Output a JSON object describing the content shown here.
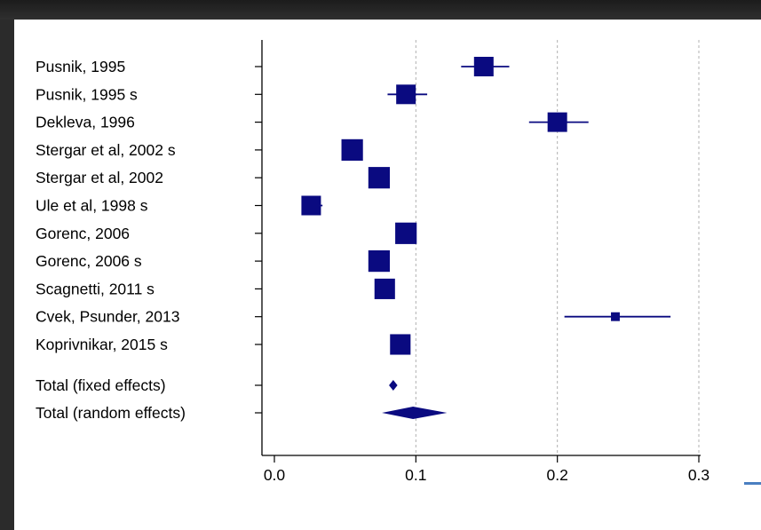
{
  "chart_data": {
    "type": "forest",
    "xlim": [
      0.0,
      0.3
    ],
    "xticks": [
      "0.0",
      "0.1",
      "0.2",
      "0.3"
    ],
    "grid": true,
    "grid_style": "dashed vertical at 0.1, 0.2, 0.3",
    "colors": {
      "marker": "#0a0a80",
      "grid": "#b0b0b0",
      "axis": "#000000"
    },
    "studies": [
      {
        "label": "Pusnik, 1995",
        "estimate": 0.148,
        "ci": [
          0.132,
          0.166
        ],
        "weight": 1.0
      },
      {
        "label": "Pusnik, 1995 s",
        "estimate": 0.093,
        "ci": [
          0.08,
          0.108
        ],
        "weight": 1.0
      },
      {
        "label": "Dekleva, 1996",
        "estimate": 0.2,
        "ci": [
          0.18,
          0.222
        ],
        "weight": 1.0
      },
      {
        "label": "Stergar et al, 2002 s",
        "estimate": 0.055,
        "ci": [
          0.048,
          0.062
        ],
        "weight": 1.1
      },
      {
        "label": "Stergar et al, 2002",
        "estimate": 0.074,
        "ci": [
          0.068,
          0.08
        ],
        "weight": 1.1
      },
      {
        "label": "Ule et al, 1998 s",
        "estimate": 0.026,
        "ci": [
          0.02,
          0.034
        ],
        "weight": 1.0
      },
      {
        "label": "Gorenc, 2006",
        "estimate": 0.093,
        "ci": [
          0.086,
          0.1
        ],
        "weight": 1.1
      },
      {
        "label": "Gorenc, 2006 s",
        "estimate": 0.074,
        "ci": [
          0.068,
          0.08
        ],
        "weight": 1.1
      },
      {
        "label": "Scagnetti, 2011 s",
        "estimate": 0.078,
        "ci": [
          0.072,
          0.085
        ],
        "weight": 1.05
      },
      {
        "label": "Cvek, Psunder, 2013",
        "estimate": 0.241,
        "ci": [
          0.205,
          0.28
        ],
        "weight": 0.45
      },
      {
        "label": "Koprivnikar, 2015 s",
        "estimate": 0.089,
        "ci": [
          0.082,
          0.096
        ],
        "weight": 1.05
      }
    ],
    "totals": [
      {
        "label": "Total (fixed effects)",
        "estimate": 0.084,
        "ci": [
          0.081,
          0.087
        ]
      },
      {
        "label": "Total (random effects)",
        "estimate": 0.098,
        "ci": [
          0.076,
          0.122
        ]
      }
    ]
  }
}
